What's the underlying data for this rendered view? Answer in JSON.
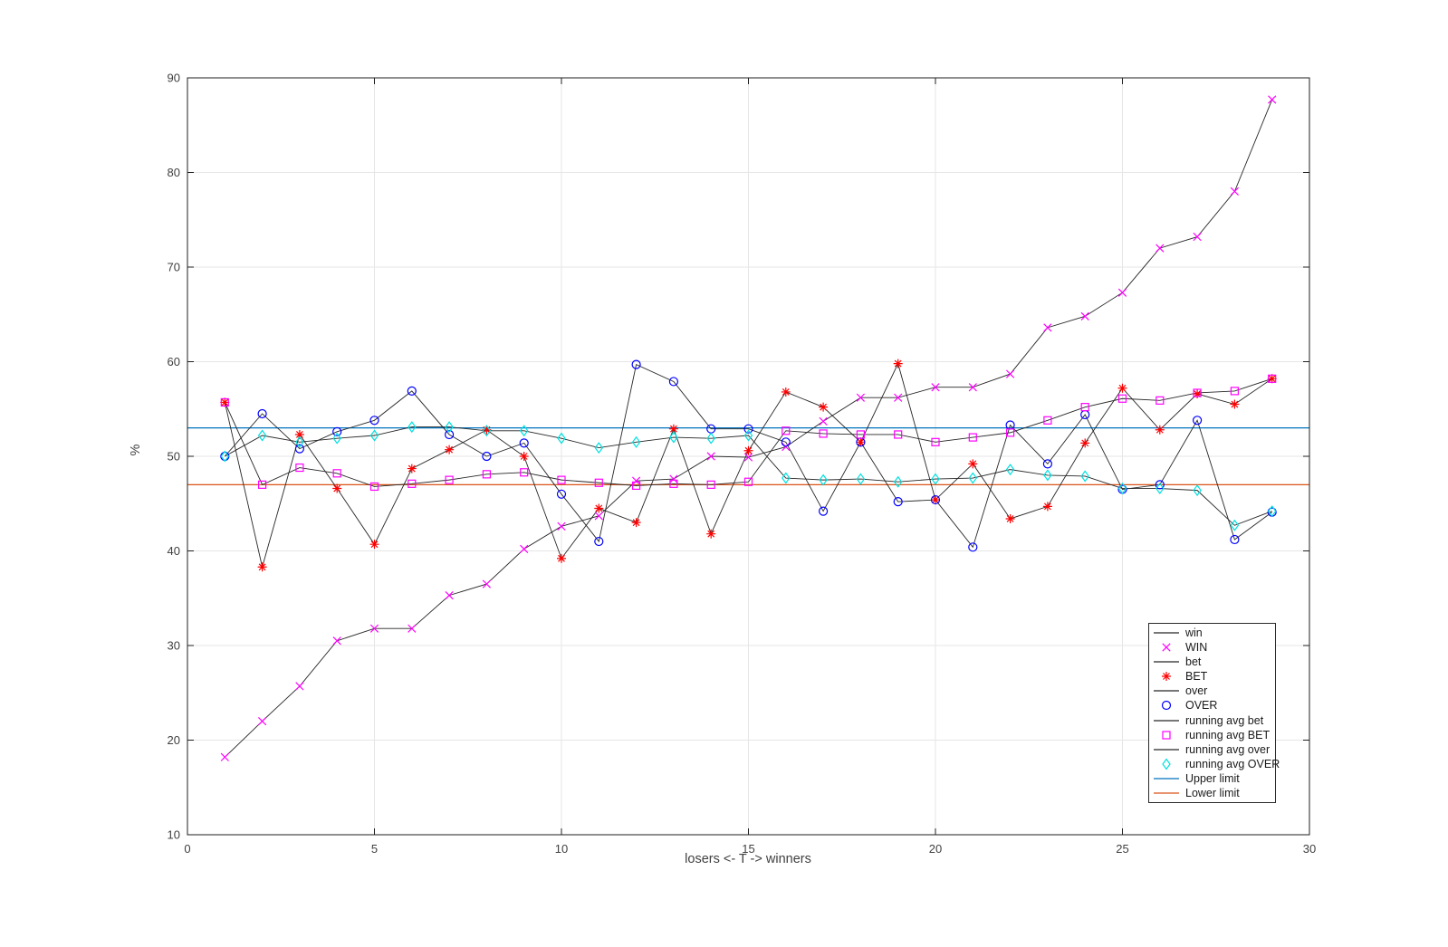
{
  "figure": {
    "xlabel": "losers <- T -> winners",
    "ylabel": "%",
    "xlim": [
      0,
      30
    ],
    "ylim": [
      10,
      90
    ],
    "xticks": [
      0,
      5,
      10,
      15,
      20,
      25,
      30
    ],
    "yticks": [
      10,
      20,
      30,
      40,
      50,
      60,
      70,
      80,
      90
    ],
    "colors": {
      "background": "#ffffff",
      "grid": "#e6e6e6",
      "axis": "#1f1f1f",
      "tick_text": "#404040",
      "series_line": "#262626"
    }
  },
  "chart_data": {
    "type": "line",
    "x": [
      1,
      2,
      3,
      4,
      5,
      6,
      7,
      8,
      9,
      10,
      11,
      12,
      13,
      14,
      15,
      16,
      17,
      18,
      19,
      20,
      21,
      22,
      23,
      24,
      25,
      26,
      27,
      28,
      29
    ],
    "series": [
      {
        "line_label": "win",
        "marker_label": "WIN",
        "marker": "x",
        "marker_color": "#ff00ff",
        "values": [
          18.2,
          22.0,
          25.7,
          30.5,
          31.8,
          31.8,
          35.3,
          36.5,
          40.2,
          42.6,
          43.7,
          47.4,
          47.6,
          50.0,
          49.9,
          51.0,
          53.7,
          56.2,
          56.2,
          57.3,
          57.3,
          58.7,
          63.6,
          64.8,
          67.3,
          72.0,
          73.2,
          78.0,
          87.7
        ]
      },
      {
        "line_label": "bet",
        "marker_label": "BET",
        "marker": "asterisk",
        "marker_color": "#ff0000",
        "values": [
          55.7,
          38.3,
          52.3,
          46.6,
          40.7,
          48.7,
          50.7,
          52.8,
          50.0,
          39.2,
          44.5,
          43.0,
          52.9,
          41.8,
          50.6,
          56.8,
          55.2,
          51.5,
          59.8,
          45.4,
          49.2,
          43.4,
          44.7,
          51.4,
          57.2,
          52.8,
          56.6,
          55.5,
          58.2
        ]
      },
      {
        "line_label": "over",
        "marker_label": "OVER",
        "marker": "circle",
        "marker_color": "#0000ff",
        "values": [
          50.0,
          54.5,
          50.8,
          52.6,
          53.8,
          56.9,
          52.3,
          50.0,
          51.4,
          46.0,
          41.0,
          59.7,
          57.9,
          52.9,
          52.9,
          51.5,
          44.2,
          51.5,
          45.2,
          45.4,
          40.4,
          53.3,
          49.2,
          54.4,
          46.5,
          47.0,
          53.8,
          41.2,
          44.1
        ]
      },
      {
        "line_label": "running avg bet",
        "marker_label": "running avg BET",
        "marker": "square",
        "marker_color": "#ff00ff",
        "values": [
          55.7,
          47.0,
          48.8,
          48.2,
          46.8,
          47.1,
          47.5,
          48.1,
          48.3,
          47.5,
          47.2,
          46.9,
          47.1,
          47.0,
          47.3,
          52.7,
          52.4,
          52.3,
          52.3,
          51.5,
          52.0,
          52.5,
          53.8,
          55.2,
          56.1,
          55.9,
          56.7,
          56.9,
          58.2
        ]
      },
      {
        "line_label": "running avg over",
        "marker_label": "running avg OVER",
        "marker": "diamond",
        "marker_color": "#00e0e0",
        "values": [
          50.0,
          52.2,
          51.5,
          51.9,
          52.2,
          53.1,
          53.1,
          52.7,
          52.7,
          51.9,
          50.9,
          51.5,
          52.0,
          51.9,
          52.2,
          47.7,
          47.5,
          47.6,
          47.3,
          47.6,
          47.7,
          48.6,
          48.0,
          47.9,
          46.6,
          46.6,
          46.4,
          42.7,
          44.2
        ]
      }
    ],
    "limit_lines": [
      {
        "label": "Upper limit",
        "value": 53,
        "color": "#0072bd"
      },
      {
        "label": "Lower limit",
        "value": 47,
        "color": "#d95319"
      }
    ]
  }
}
